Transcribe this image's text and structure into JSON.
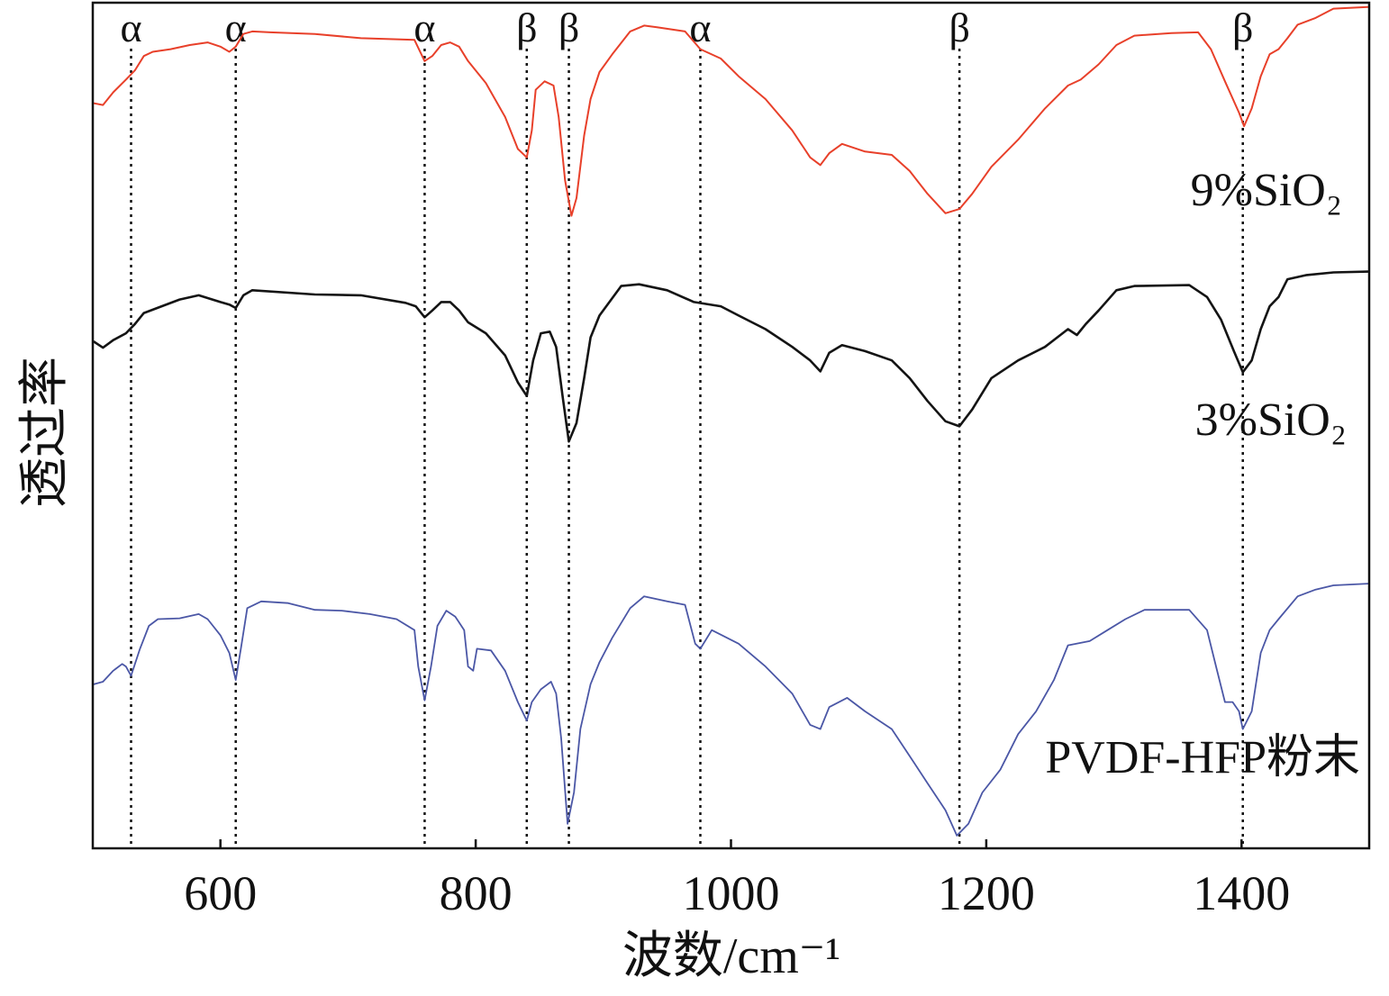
{
  "chart_data": {
    "type": "line",
    "title": "",
    "xlabel": "波数/cm⁻¹",
    "ylabel": "透过率",
    "xlim": [
      500,
      1500
    ],
    "ylim": [
      0,
      100
    ],
    "x_ticks": [
      600,
      800,
      1000,
      1200,
      1400
    ],
    "grid": false,
    "legend_position": "right",
    "series": [
      {
        "name": "9%SiO₂",
        "color": "#e8402a",
        "points": [
          [
            501,
            88.1
          ],
          [
            508,
            87.9
          ],
          [
            516,
            89.4
          ],
          [
            526,
            90.9
          ],
          [
            533,
            92.0
          ],
          [
            540,
            93.7
          ],
          [
            547,
            94.2
          ],
          [
            561,
            94.5
          ],
          [
            576,
            95.0
          ],
          [
            590,
            95.3
          ],
          [
            600,
            94.8
          ],
          [
            607,
            94.2
          ],
          [
            612,
            94.8
          ],
          [
            618,
            96.3
          ],
          [
            625,
            96.6
          ],
          [
            639,
            96.5
          ],
          [
            674,
            96.3
          ],
          [
            710,
            95.8
          ],
          [
            752,
            95.6
          ],
          [
            760,
            93.1
          ],
          [
            766,
            93.7
          ],
          [
            773,
            95.0
          ],
          [
            780,
            95.3
          ],
          [
            787,
            94.8
          ],
          [
            794,
            93.1
          ],
          [
            808,
            90.5
          ],
          [
            823,
            86.5
          ],
          [
            833,
            82.7
          ],
          [
            840,
            81.7
          ],
          [
            844,
            84.9
          ],
          [
            847,
            89.7
          ],
          [
            854,
            90.7
          ],
          [
            861,
            90.2
          ],
          [
            865,
            86.5
          ],
          [
            870,
            79.0
          ],
          [
            875,
            74.8
          ],
          [
            879,
            76.9
          ],
          [
            885,
            84.3
          ],
          [
            890,
            88.6
          ],
          [
            897,
            91.8
          ],
          [
            907,
            93.9
          ],
          [
            921,
            96.6
          ],
          [
            932,
            97.3
          ],
          [
            942,
            97.1
          ],
          [
            964,
            96.6
          ],
          [
            976,
            94.5
          ],
          [
            992,
            93.4
          ],
          [
            1006,
            91.3
          ],
          [
            1027,
            88.6
          ],
          [
            1048,
            84.9
          ],
          [
            1062,
            81.7
          ],
          [
            1070,
            80.8
          ],
          [
            1077,
            82.2
          ],
          [
            1087,
            83.3
          ],
          [
            1105,
            82.4
          ],
          [
            1126,
            82.0
          ],
          [
            1140,
            80.1
          ],
          [
            1154,
            77.4
          ],
          [
            1168,
            75.1
          ],
          [
            1179,
            75.6
          ],
          [
            1189,
            77.4
          ],
          [
            1204,
            80.6
          ],
          [
            1225,
            83.8
          ],
          [
            1246,
            87.5
          ],
          [
            1264,
            90.2
          ],
          [
            1274,
            90.9
          ],
          [
            1288,
            92.7
          ],
          [
            1302,
            95.0
          ],
          [
            1316,
            96.1
          ],
          [
            1345,
            96.4
          ],
          [
            1366,
            96.5
          ],
          [
            1376,
            94.5
          ],
          [
            1387,
            90.7
          ],
          [
            1398,
            87.0
          ],
          [
            1402,
            85.4
          ],
          [
            1408,
            87.5
          ],
          [
            1415,
            91.3
          ],
          [
            1422,
            93.9
          ],
          [
            1429,
            94.5
          ],
          [
            1436,
            95.8
          ],
          [
            1444,
            97.4
          ],
          [
            1458,
            98.2
          ],
          [
            1472,
            99.3
          ],
          [
            1499,
            99.5
          ]
        ]
      },
      {
        "name": "3%SiO₂",
        "color": "#141414",
        "points": [
          [
            501,
            59.9
          ],
          [
            508,
            59.2
          ],
          [
            516,
            60.1
          ],
          [
            526,
            60.9
          ],
          [
            533,
            62.0
          ],
          [
            540,
            63.3
          ],
          [
            554,
            64.1
          ],
          [
            568,
            64.9
          ],
          [
            583,
            65.4
          ],
          [
            600,
            64.6
          ],
          [
            607,
            64.3
          ],
          [
            612,
            63.9
          ],
          [
            618,
            65.4
          ],
          [
            625,
            66.0
          ],
          [
            674,
            65.5
          ],
          [
            710,
            65.4
          ],
          [
            745,
            64.5
          ],
          [
            753,
            64.1
          ],
          [
            760,
            62.8
          ],
          [
            766,
            63.6
          ],
          [
            773,
            64.6
          ],
          [
            780,
            64.6
          ],
          [
            787,
            63.6
          ],
          [
            794,
            62.2
          ],
          [
            808,
            60.9
          ],
          [
            823,
            58.3
          ],
          [
            833,
            55.1
          ],
          [
            840,
            53.5
          ],
          [
            845,
            57.7
          ],
          [
            851,
            60.9
          ],
          [
            858,
            61.1
          ],
          [
            863,
            59.3
          ],
          [
            868,
            53.5
          ],
          [
            873,
            48.1
          ],
          [
            879,
            50.3
          ],
          [
            885,
            55.6
          ],
          [
            890,
            60.4
          ],
          [
            897,
            63.0
          ],
          [
            914,
            66.5
          ],
          [
            928,
            66.7
          ],
          [
            950,
            66.0
          ],
          [
            971,
            64.6
          ],
          [
            992,
            64.1
          ],
          [
            1006,
            63.0
          ],
          [
            1027,
            61.4
          ],
          [
            1048,
            59.3
          ],
          [
            1062,
            57.7
          ],
          [
            1070,
            56.4
          ],
          [
            1077,
            58.6
          ],
          [
            1087,
            59.5
          ],
          [
            1105,
            58.8
          ],
          [
            1126,
            57.7
          ],
          [
            1140,
            55.6
          ],
          [
            1154,
            52.9
          ],
          [
            1168,
            50.5
          ],
          [
            1179,
            49.9
          ],
          [
            1189,
            51.9
          ],
          [
            1204,
            55.6
          ],
          [
            1225,
            57.7
          ],
          [
            1246,
            59.3
          ],
          [
            1264,
            61.4
          ],
          [
            1271,
            60.7
          ],
          [
            1278,
            62.0
          ],
          [
            1288,
            63.6
          ],
          [
            1302,
            66.0
          ],
          [
            1316,
            66.5
          ],
          [
            1359,
            66.6
          ],
          [
            1373,
            65.2
          ],
          [
            1384,
            62.5
          ],
          [
            1394,
            58.8
          ],
          [
            1401,
            56.3
          ],
          [
            1408,
            57.7
          ],
          [
            1415,
            61.4
          ],
          [
            1422,
            64.1
          ],
          [
            1429,
            65.2
          ],
          [
            1436,
            67.3
          ],
          [
            1451,
            67.8
          ],
          [
            1472,
            68.1
          ],
          [
            1499,
            68.2
          ]
        ]
      },
      {
        "name": "PVDF-HFP粉末",
        "color": "#4b57a6",
        "points": [
          [
            501,
            19.4
          ],
          [
            508,
            19.7
          ],
          [
            516,
            21.0
          ],
          [
            523,
            21.8
          ],
          [
            526,
            21.5
          ],
          [
            530,
            20.4
          ],
          [
            537,
            23.6
          ],
          [
            544,
            26.3
          ],
          [
            551,
            27.1
          ],
          [
            568,
            27.2
          ],
          [
            583,
            27.7
          ],
          [
            590,
            27.1
          ],
          [
            600,
            25.2
          ],
          [
            607,
            23.1
          ],
          [
            612,
            19.9
          ],
          [
            616,
            23.6
          ],
          [
            621,
            28.4
          ],
          [
            632,
            29.2
          ],
          [
            653,
            29.0
          ],
          [
            674,
            28.2
          ],
          [
            695,
            28.1
          ],
          [
            717,
            27.7
          ],
          [
            738,
            27.1
          ],
          [
            752,
            25.8
          ],
          [
            755,
            21.5
          ],
          [
            760,
            17.5
          ],
          [
            765,
            21.5
          ],
          [
            770,
            26.3
          ],
          [
            777,
            28.1
          ],
          [
            784,
            27.4
          ],
          [
            791,
            25.8
          ],
          [
            794,
            21.5
          ],
          [
            798,
            21.0
          ],
          [
            801,
            23.6
          ],
          [
            812,
            23.4
          ],
          [
            823,
            21.0
          ],
          [
            833,
            17.3
          ],
          [
            840,
            15.1
          ],
          [
            844,
            17.3
          ],
          [
            851,
            18.8
          ],
          [
            859,
            19.7
          ],
          [
            863,
            18.3
          ],
          [
            867,
            13.0
          ],
          [
            872,
            2.9
          ],
          [
            877,
            6.6
          ],
          [
            882,
            14.1
          ],
          [
            890,
            19.4
          ],
          [
            897,
            22.0
          ],
          [
            907,
            24.9
          ],
          [
            921,
            28.4
          ],
          [
            932,
            29.8
          ],
          [
            950,
            29.2
          ],
          [
            964,
            28.8
          ],
          [
            972,
            24.2
          ],
          [
            976,
            23.6
          ],
          [
            985,
            25.8
          ],
          [
            1006,
            24.2
          ],
          [
            1027,
            21.5
          ],
          [
            1048,
            18.3
          ],
          [
            1062,
            14.6
          ],
          [
            1070,
            14.1
          ],
          [
            1077,
            16.7
          ],
          [
            1091,
            17.8
          ],
          [
            1105,
            16.2
          ],
          [
            1126,
            14.1
          ],
          [
            1140,
            10.9
          ],
          [
            1154,
            7.7
          ],
          [
            1168,
            4.5
          ],
          [
            1177,
            1.5
          ],
          [
            1186,
            2.9
          ],
          [
            1197,
            6.6
          ],
          [
            1211,
            9.3
          ],
          [
            1225,
            13.5
          ],
          [
            1239,
            16.2
          ],
          [
            1253,
            19.9
          ],
          [
            1264,
            24.0
          ],
          [
            1281,
            24.5
          ],
          [
            1295,
            25.8
          ],
          [
            1309,
            27.1
          ],
          [
            1324,
            28.2
          ],
          [
            1359,
            28.2
          ],
          [
            1373,
            25.8
          ],
          [
            1380,
            21.5
          ],
          [
            1387,
            17.3
          ],
          [
            1393,
            17.3
          ],
          [
            1398,
            16.2
          ],
          [
            1401,
            14.1
          ],
          [
            1408,
            16.2
          ],
          [
            1415,
            23.1
          ],
          [
            1422,
            25.8
          ],
          [
            1429,
            27.1
          ],
          [
            1444,
            29.8
          ],
          [
            1458,
            30.6
          ],
          [
            1472,
            31.1
          ],
          [
            1499,
            31.3
          ]
        ]
      }
    ],
    "annotations": [
      {
        "x": 530,
        "label": "α"
      },
      {
        "x": 612,
        "label": "α"
      },
      {
        "x": 760,
        "label": "α"
      },
      {
        "x": 840,
        "label": "β"
      },
      {
        "x": 873,
        "label": "β"
      },
      {
        "x": 976,
        "label": "α"
      },
      {
        "x": 1179,
        "label": "β"
      },
      {
        "x": 1401,
        "label": "β"
      }
    ]
  }
}
